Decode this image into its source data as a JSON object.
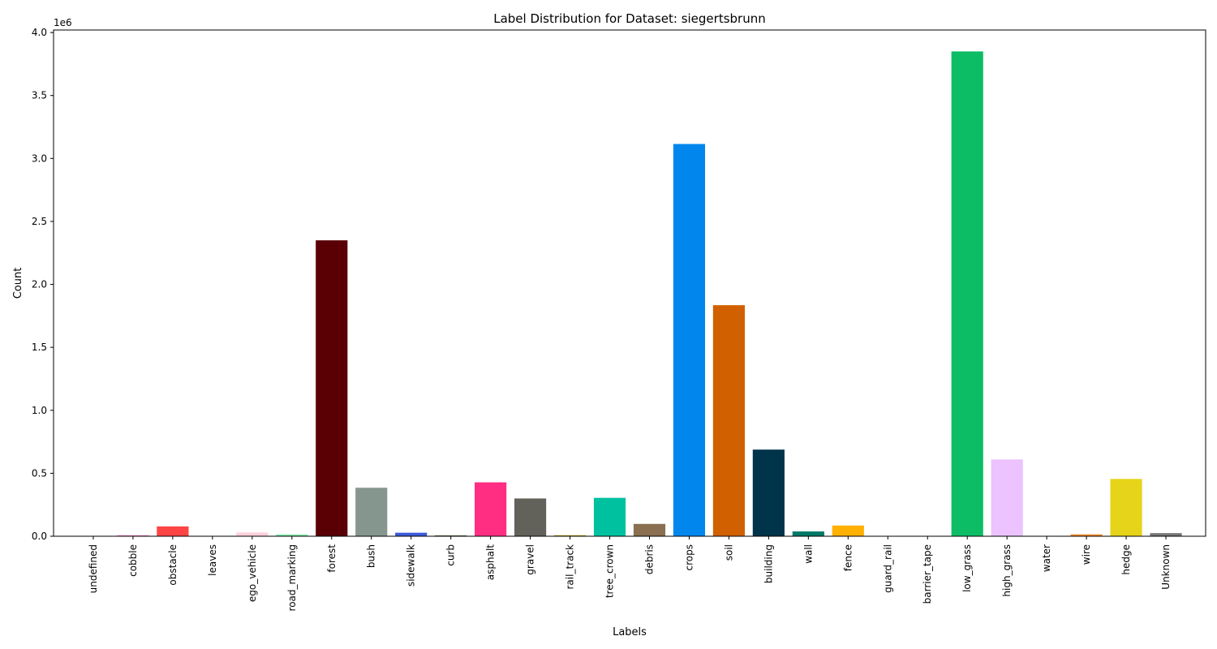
{
  "chart_data": {
    "type": "bar",
    "title": "Label Distribution for Dataset: siegertsbrunn",
    "xlabel": "Labels",
    "ylabel": "Count",
    "y_multiplier_label": "1e6",
    "ylim": [
      0,
      4020000
    ],
    "yticks": [
      0,
      500000,
      1000000,
      1500000,
      2000000,
      2500000,
      3000000,
      3500000,
      4000000
    ],
    "ytick_labels": [
      "0.0",
      "0.5",
      "1.0",
      "1.5",
      "2.0",
      "2.5",
      "3.0",
      "3.5",
      "4.0"
    ],
    "grid": false,
    "categories": [
      "undefined",
      "cobble",
      "obstacle",
      "leaves",
      "ego_vehicle",
      "road_marking",
      "forest",
      "bush",
      "sidewalk",
      "curb",
      "asphalt",
      "gravel",
      "rail_track",
      "tree_crown",
      "debris",
      "crops",
      "soil",
      "building",
      "wall",
      "fence",
      "guard_rail",
      "barrier_tape",
      "low_grass",
      "high_grass",
      "water",
      "wire",
      "hedge",
      "Unknown"
    ],
    "values": [
      0,
      8000,
      78000,
      0,
      30000,
      14000,
      2350000,
      385000,
      28000,
      6000,
      428000,
      300000,
      8000,
      305000,
      98000,
      3115000,
      1835000,
      688000,
      38000,
      85000,
      0,
      0,
      3850000,
      610000,
      0,
      15000,
      455000,
      25000
    ],
    "colors": [
      "#ffffff",
      "#ff82c9",
      "#ff4444",
      "#a8c66c",
      "#ffd1dc",
      "#7ee8a8",
      "#5a0005",
      "#85968f",
      "#3b5bd9",
      "#2a4a1e",
      "#ff2e82",
      "#62625a",
      "#b59a16",
      "#00c19f",
      "#8a7050",
      "#0086ed",
      "#d16100",
      "#00344b",
      "#007a66",
      "#ffb000",
      "#555555",
      "#888888",
      "#0cbd66",
      "#ecc2ff",
      "#00d0f0",
      "#f78a2a",
      "#e5d419",
      "#777777"
    ]
  }
}
